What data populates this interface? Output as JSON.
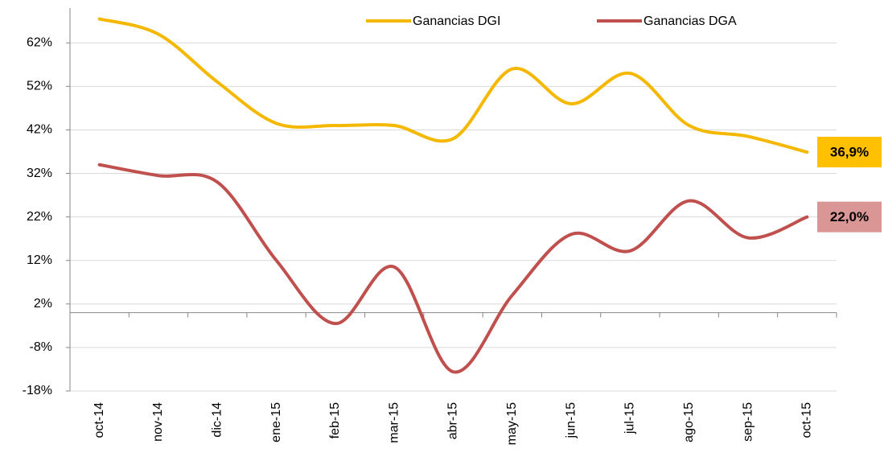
{
  "chart_data": {
    "type": "line",
    "categories": [
      "oct-14",
      "nov-14",
      "dic-14",
      "ene-15",
      "feb-15",
      "mar-15",
      "abr-15",
      "may-15",
      "jun-15",
      "jul-15",
      "ago-15",
      "sep-15",
      "oct-15"
    ],
    "series": [
      {
        "name": "Ganancias DGI",
        "color": "#f5b800",
        "label_color": "#ffc000",
        "values": [
          67.5,
          64,
          53,
          43.5,
          43,
          43,
          40,
          56,
          48,
          55,
          43,
          40.5,
          36.9
        ],
        "value_labels": [
          null,
          null,
          null,
          null,
          null,
          null,
          null,
          null,
          null,
          null,
          null,
          null,
          "36,9%"
        ]
      },
      {
        "name": "Ganancias DGA",
        "color": "#c0504d",
        "label_color": "#d99694",
        "values": [
          34,
          31.5,
          30,
          12,
          -2.5,
          10.5,
          -13.6,
          4,
          18,
          14.2,
          25.7,
          17.2,
          22.0
        ],
        "value_labels": [
          null,
          null,
          null,
          null,
          null,
          null,
          null,
          null,
          null,
          null,
          null,
          null,
          "22,0%"
        ]
      }
    ],
    "ylim": [
      -18,
      70
    ],
    "yticks": [
      {
        "value": -18,
        "label": "-18%"
      },
      {
        "value": -8,
        "label": "-8%"
      },
      {
        "value": 2,
        "label": "2%"
      },
      {
        "value": 12,
        "label": "12%"
      },
      {
        "value": 22,
        "label": "22%"
      },
      {
        "value": 32,
        "label": "32%"
      },
      {
        "value": 42,
        "label": "42%"
      },
      {
        "value": 52,
        "label": "52%"
      },
      {
        "value": 62,
        "label": "62%"
      }
    ],
    "grid": true,
    "legend": "top"
  }
}
